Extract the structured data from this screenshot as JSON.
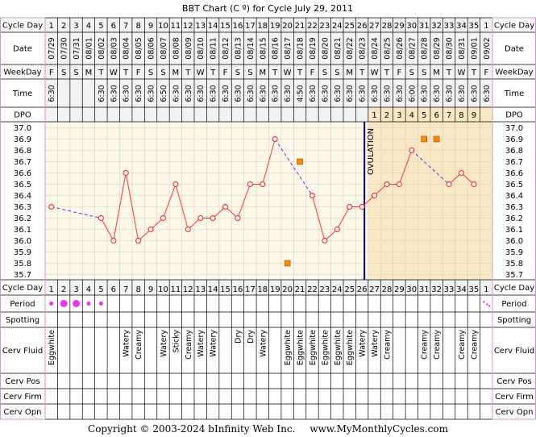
{
  "chart_data": {
    "type": "line",
    "title": "BBT Chart (C º) for Cycle July 29, 2011",
    "ylim": [
      35.7,
      37.0
    ],
    "y_ticks": [
      "37.0",
      "36.9",
      "36.8",
      "36.7",
      "36.6",
      "36.5",
      "36.4",
      "36.3",
      "36.2",
      "36.1",
      "36.0",
      "35.9",
      "35.8",
      "35.7"
    ],
    "cycle_days": [
      "1",
      "2",
      "3",
      "4",
      "5",
      "6",
      "7",
      "8",
      "9",
      "10",
      "11",
      "12",
      "13",
      "14",
      "15",
      "16",
      "17",
      "18",
      "19",
      "20",
      "21",
      "22",
      "23",
      "24",
      "25",
      "26",
      "27",
      "28",
      "29",
      "30",
      "31",
      "32",
      "33",
      "34",
      "35",
      "1"
    ],
    "dates": [
      "07/29",
      "07/30",
      "07/31",
      "08/01",
      "08/02",
      "08/03",
      "08/04",
      "08/05",
      "08/06",
      "08/07",
      "08/08",
      "08/09",
      "08/10",
      "08/11",
      "08/12",
      "08/13",
      "08/14",
      "08/15",
      "08/16",
      "08/17",
      "08/18",
      "08/19",
      "08/20",
      "08/21",
      "08/22",
      "08/23",
      "08/24",
      "08/25",
      "08/26",
      "08/27",
      "08/28",
      "08/29",
      "08/30",
      "08/31",
      "09/01",
      "09/02"
    ],
    "weekdays": [
      "F",
      "S",
      "S",
      "M",
      "T",
      "W",
      "T",
      "F",
      "S",
      "S",
      "M",
      "T",
      "W",
      "T",
      "F",
      "S",
      "S",
      "M",
      "T",
      "W",
      "T",
      "F",
      "S",
      "S",
      "M",
      "T",
      "W",
      "T",
      "F",
      "S",
      "S",
      "M",
      "T",
      "W",
      "T",
      "F"
    ],
    "times": [
      "6:30",
      "",
      "",
      "",
      "6:30",
      "6:30",
      "6:30",
      "6:30",
      "6:30",
      "6:50",
      "6:30",
      "6:30",
      "6:30",
      "6:30",
      "6:30",
      "6:30",
      "6:30",
      "6:30",
      "6:30",
      "6:30",
      "4:50",
      "6:30",
      "6:30",
      "6:30",
      "6:30",
      "6:30",
      "6:30",
      "6:30",
      "6:30",
      "6:00",
      "6:30",
      "6:30",
      "6:30",
      "6:30",
      "6:30",
      "6:30"
    ],
    "dpo": [
      "",
      "",
      "",
      "",
      "",
      "",
      "",
      "",
      "",
      "",
      "",
      "",
      "",
      "",
      "",
      "",
      "",
      "",
      "",
      "",
      "",
      "",
      "",
      "",
      "",
      "",
      "1",
      "2",
      "3",
      "4",
      "5",
      "6",
      "7",
      "8",
      "9",
      ""
    ],
    "temperatures": [
      36.3,
      null,
      null,
      null,
      36.2,
      36.0,
      36.6,
      36.0,
      36.1,
      36.2,
      36.5,
      36.1,
      36.2,
      36.2,
      36.3,
      36.2,
      36.5,
      36.5,
      36.9,
      null,
      null,
      36.4,
      36.0,
      36.1,
      36.3,
      36.3,
      36.4,
      36.5,
      36.5,
      36.8,
      null,
      null,
      36.5,
      36.6,
      36.5,
      null
    ],
    "discarded": [
      {
        "day_index": 19,
        "temp": 35.8
      },
      {
        "day_index": 20,
        "temp": 36.7
      },
      {
        "day_index": 30,
        "temp": 36.9
      },
      {
        "day_index": 31,
        "temp": 36.9
      }
    ],
    "ovulation_label": "OVULATION",
    "ovulation_after_day_index": 25,
    "period": [
      "dot",
      "big",
      "big",
      "dot",
      "dot",
      "",
      "",
      "",
      "",
      "",
      "",
      "",
      "",
      "",
      "",
      "",
      "",
      "",
      "",
      "",
      "",
      "",
      "",
      "",
      "",
      "",
      "",
      "",
      "",
      "",
      "",
      "",
      "",
      "",
      "",
      "spotted"
    ],
    "cervical_fluid": [
      "Eggwhite",
      "",
      "",
      "",
      "",
      "",
      "Watery",
      "Creamy",
      "",
      "Watery",
      "Sticky",
      "Creamy",
      "Watery",
      "Watery",
      "",
      "Dry",
      "Dry",
      "Watery",
      "",
      "Eggwhite",
      "Eggwhite",
      "Eggwhite",
      "Eggwhite",
      "Eggwhite",
      "Eggwhite",
      "Watery",
      "Watery",
      "Creamy",
      "",
      "",
      "Creamy",
      "Creamy",
      "",
      "Creamy",
      "Creamy",
      ""
    ],
    "row_labels": {
      "cycle_day": "Cycle Day",
      "date": "Date",
      "weekday": "WeekDay",
      "time": "Time",
      "dpo": "DPO",
      "period": "Period",
      "spotting": "Spotting",
      "cerv_fluid": "Cerv Fluid",
      "cerv_pos": "Cerv Pos",
      "cerv_firm": "Cerv Firm",
      "cerv_opn": "Cerv Opn"
    },
    "colors": {
      "line": "#ff3333",
      "coverline": "#4444dd",
      "ovulation": "#000080",
      "pre_ov_bg": "#fdf8e8",
      "post_ov_bg": "#f8e8c4",
      "header_bg": "#f2f2f2",
      "period": "#ee33ee",
      "discarded": "#ff8800",
      "border": "#cc99cc"
    }
  },
  "footer": {
    "copyright": "Copyright © 2003-2024 bInfinity Web Inc.",
    "site": "www.MyMonthlyCycles.com"
  }
}
